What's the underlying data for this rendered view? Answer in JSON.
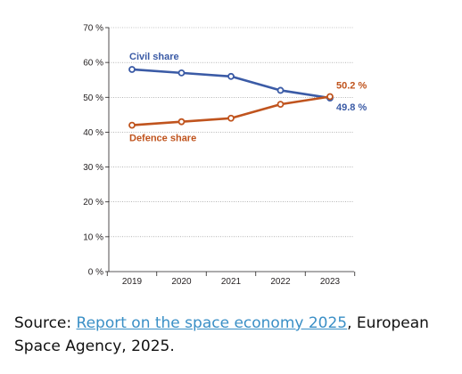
{
  "chart_data": {
    "type": "line",
    "categories": [
      "2019",
      "2020",
      "2021",
      "2022",
      "2023"
    ],
    "y_ticks": [
      "0 %",
      "10 %",
      "20 %",
      "30 %",
      "40 %",
      "50 %",
      "60 %",
      "70 %"
    ],
    "ylim": [
      0,
      70
    ],
    "grid": true,
    "series": [
      {
        "name": "Civil share",
        "color": "#3b5ba6",
        "values": [
          58,
          57,
          56,
          52,
          49.8
        ],
        "end_label": "49.8 %"
      },
      {
        "name": "Defence share",
        "color": "#c0541e",
        "values": [
          42,
          43,
          44,
          48,
          50.2
        ],
        "end_label": "50.2 %"
      }
    ]
  },
  "source": {
    "prefix": "Source: ",
    "link_text": "Report on the space economy 2025",
    "suffix": ", European Space Agency, 2025."
  }
}
